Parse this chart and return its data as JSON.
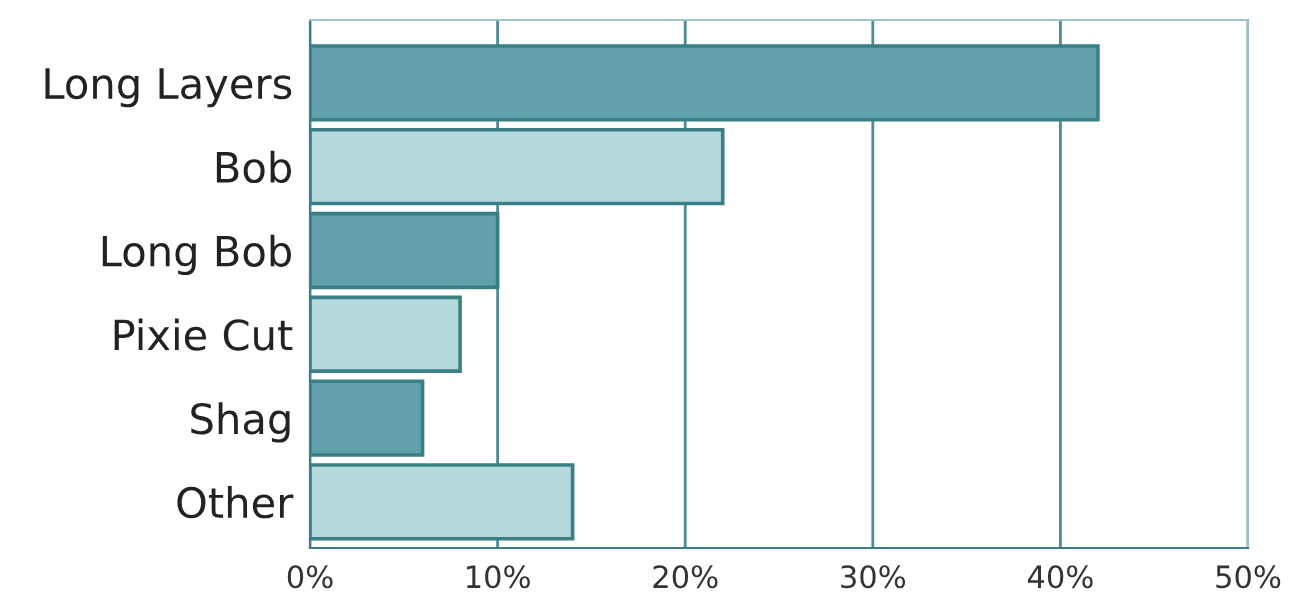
{
  "chart_data": {
    "type": "bar",
    "orientation": "horizontal",
    "categories": [
      "Long Layers",
      "Bob",
      "Long Bob",
      "Pixie Cut",
      "Shag",
      "Other"
    ],
    "values": [
      42,
      22,
      10,
      8,
      6,
      14
    ],
    "colors": [
      "#62a1ab",
      "#b5d8da",
      "#62a1ab",
      "#b5d8da",
      "#62a1ab",
      "#b5d8da"
    ],
    "xlim": [
      0,
      50
    ],
    "xticks": [
      {
        "value": 0,
        "label": "0%"
      },
      {
        "value": 10,
        "label": "10%"
      },
      {
        "value": 20,
        "label": "20%"
      },
      {
        "value": 30,
        "label": "30%"
      },
      {
        "value": 40,
        "label": "40%"
      },
      {
        "value": 50,
        "label": "50%"
      }
    ],
    "grid": "x",
    "legend": false
  }
}
